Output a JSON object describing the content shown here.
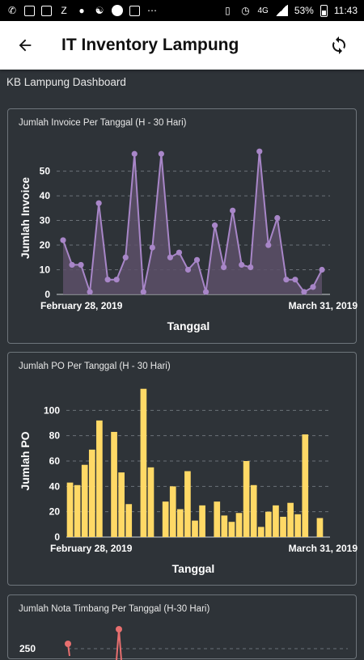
{
  "status_bar": {
    "network": "4G",
    "battery": "53%",
    "time": "11:43"
  },
  "app_bar": {
    "title": "IT Inventory Lampung",
    "back_icon": "arrow-left-icon",
    "refresh_icon": "sync-icon"
  },
  "dashboard": {
    "title": "KB Lampung Dashboard"
  },
  "colors": {
    "background": "#2e3338",
    "line_series": "#a886c8",
    "line_fill": "#5c5068",
    "bar_series": "#ffd966",
    "axis_text": "#ffffff"
  },
  "chart_data": [
    {
      "type": "area",
      "title": "Jumlah Invoice Per Tanggal (H - 30 Hari)",
      "xlabel": "Tanggal",
      "ylabel": "Jumlah Invoice",
      "x_start_label": "February 28, 2019",
      "x_end_label": "March 31, 2019",
      "ylim": [
        0,
        62
      ],
      "yticks": [
        0,
        10,
        20,
        30,
        40,
        50
      ],
      "grid": true,
      "values": [
        22,
        12,
        12,
        1,
        37,
        6,
        6,
        15,
        57,
        1,
        19,
        57,
        15,
        17,
        10,
        14,
        1,
        28,
        11,
        34,
        12,
        11,
        58,
        20,
        31,
        6,
        6,
        1,
        3,
        10
      ]
    },
    {
      "type": "bar",
      "title": "Jumlah PO Per Tanggal (H - 30 Hari)",
      "xlabel": "Tanggal",
      "ylabel": "Jumlah PO",
      "x_start_label": "February 28, 2019",
      "x_end_label": "March 31, 2019",
      "ylim": [
        0,
        120
      ],
      "yticks": [
        0,
        20,
        40,
        60,
        80,
        100
      ],
      "grid": true,
      "values": [
        43,
        41,
        57,
        69,
        92,
        0,
        83,
        51,
        26,
        0,
        117,
        55,
        0,
        28,
        40,
        22,
        52,
        13,
        25,
        0,
        28,
        17,
        12,
        19,
        60,
        41,
        8,
        20,
        25,
        16,
        27,
        18,
        81,
        0,
        15
      ]
    },
    {
      "type": "line",
      "title": "Jumlah Nota Timbang Per Tanggal (H-30 Hari)",
      "partial_tick_label": "250"
    }
  ]
}
